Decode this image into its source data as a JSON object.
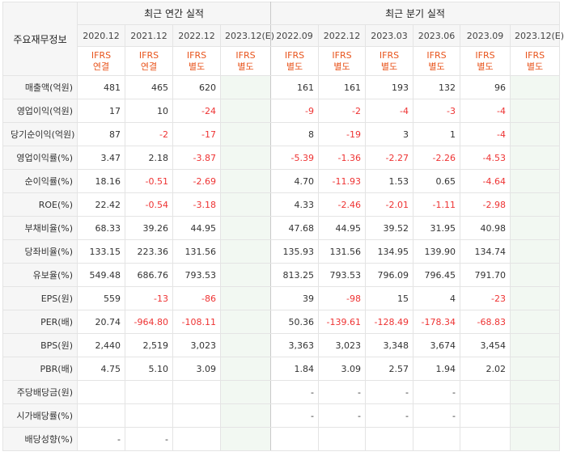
{
  "header": {
    "row_label": "주요재무정보",
    "annual_title": "최근 연간 실적",
    "quarter_title": "최근 분기 실적"
  },
  "periods": [
    {
      "date": "2020.12",
      "type1": "IFRS",
      "type2": "연결"
    },
    {
      "date": "2021.12",
      "type1": "IFRS",
      "type2": "연결"
    },
    {
      "date": "2022.12",
      "type1": "IFRS",
      "type2": "별도"
    },
    {
      "date": "2023.12(E)",
      "type1": "IFRS",
      "type2": "별도"
    },
    {
      "date": "2022.09",
      "type1": "IFRS",
      "type2": "별도"
    },
    {
      "date": "2022.12",
      "type1": "IFRS",
      "type2": "별도"
    },
    {
      "date": "2023.03",
      "type1": "IFRS",
      "type2": "별도"
    },
    {
      "date": "2023.06",
      "type1": "IFRS",
      "type2": "별도"
    },
    {
      "date": "2023.09",
      "type1": "IFRS",
      "type2": "별도"
    },
    {
      "date": "2023.12(E)",
      "type1": "IFRS",
      "type2": "별도"
    }
  ],
  "rows": [
    {
      "label": "매출액(억원)",
      "values": [
        "481",
        "465",
        "620",
        "",
        "161",
        "161",
        "193",
        "132",
        "96",
        ""
      ]
    },
    {
      "label": "영업이익(억원)",
      "values": [
        "17",
        "10",
        "-24",
        "",
        "-9",
        "-2",
        "-4",
        "-3",
        "-4",
        ""
      ]
    },
    {
      "label": "당기순이익(억원)",
      "values": [
        "87",
        "-2",
        "-17",
        "",
        "8",
        "-19",
        "3",
        "1",
        "-4",
        ""
      ]
    },
    {
      "label": "영업이익률(%)",
      "values": [
        "3.47",
        "2.18",
        "-3.87",
        "",
        "-5.39",
        "-1.36",
        "-2.27",
        "-2.26",
        "-4.53",
        ""
      ]
    },
    {
      "label": "순이익률(%)",
      "values": [
        "18.16",
        "-0.51",
        "-2.69",
        "",
        "4.70",
        "-11.93",
        "1.53",
        "0.65",
        "-4.64",
        ""
      ]
    },
    {
      "label": "ROE(%)",
      "values": [
        "22.42",
        "-0.54",
        "-3.18",
        "",
        "4.33",
        "-2.46",
        "-2.01",
        "-1.11",
        "-2.98",
        ""
      ]
    },
    {
      "label": "부채비율(%)",
      "values": [
        "68.33",
        "39.26",
        "44.95",
        "",
        "47.68",
        "44.95",
        "39.52",
        "31.95",
        "40.98",
        ""
      ]
    },
    {
      "label": "당좌비율(%)",
      "values": [
        "133.15",
        "223.36",
        "131.56",
        "",
        "135.93",
        "131.56",
        "134.95",
        "139.90",
        "134.74",
        ""
      ]
    },
    {
      "label": "유보율(%)",
      "values": [
        "549.48",
        "686.76",
        "793.53",
        "",
        "813.25",
        "793.53",
        "796.09",
        "796.45",
        "791.70",
        ""
      ]
    },
    {
      "label": "EPS(원)",
      "values": [
        "559",
        "-13",
        "-86",
        "",
        "39",
        "-98",
        "15",
        "4",
        "-23",
        ""
      ]
    },
    {
      "label": "PER(배)",
      "values": [
        "20.74",
        "-964.80",
        "-108.11",
        "",
        "50.36",
        "-139.61",
        "-128.49",
        "-178.34",
        "-68.83",
        ""
      ]
    },
    {
      "label": "BPS(원)",
      "values": [
        "2,440",
        "2,519",
        "3,023",
        "",
        "3,363",
        "3,023",
        "3,348",
        "3,674",
        "3,454",
        ""
      ]
    },
    {
      "label": "PBR(배)",
      "values": [
        "4.75",
        "5.10",
        "3.09",
        "",
        "1.84",
        "3.09",
        "2.57",
        "1.94",
        "2.02",
        ""
      ]
    },
    {
      "label": "주당배당금(원)",
      "values": [
        "",
        "",
        "",
        "",
        "-",
        "-",
        "-",
        "-",
        "",
        ""
      ]
    },
    {
      "label": "시가배당률(%)",
      "values": [
        "",
        "",
        "",
        "",
        "-",
        "-",
        "-",
        "-",
        "",
        ""
      ]
    },
    {
      "label": "배당성향(%)",
      "values": [
        "-",
        "-",
        "",
        "",
        "",
        "",
        "",
        "",
        "",
        ""
      ]
    }
  ]
}
